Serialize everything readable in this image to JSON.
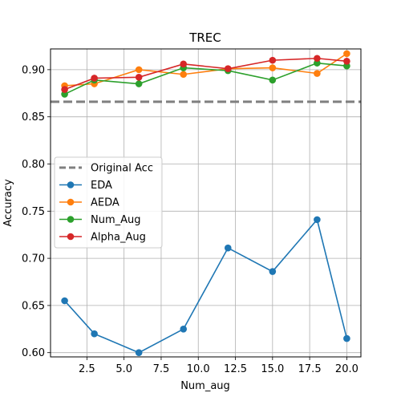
{
  "chart_data": {
    "type": "line",
    "title": "TREC",
    "xlabel": "Num_aug",
    "ylabel": "Accuracy",
    "xlim": [
      0.05,
      20.95
    ],
    "ylim": [
      0.5955,
      0.922
    ],
    "xticks": [
      2.5,
      5.0,
      7.5,
      10.0,
      12.5,
      15.0,
      17.5,
      20.0
    ],
    "xtick_labels": [
      "2.5",
      "5.0",
      "7.5",
      "10.0",
      "12.5",
      "15.0",
      "17.5",
      "20.0"
    ],
    "yticks": [
      0.6,
      0.65,
      0.7,
      0.75,
      0.8,
      0.85,
      0.9
    ],
    "ytick_labels": [
      "0.60",
      "0.65",
      "0.70",
      "0.75",
      "0.80",
      "0.85",
      "0.90"
    ],
    "grid": true,
    "legend_position": "center-left",
    "x": [
      1,
      3,
      6,
      9,
      12,
      15,
      18,
      20
    ],
    "baseline": {
      "name": "Original Acc",
      "value": 0.866,
      "color": "#7f7f7f"
    },
    "series": [
      {
        "name": "EDA",
        "color": "#1f77b4",
        "values": [
          0.655,
          0.62,
          0.6,
          0.625,
          0.711,
          0.686,
          0.741,
          0.615
        ]
      },
      {
        "name": "AEDA",
        "color": "#ff7f0e",
        "values": [
          0.883,
          0.885,
          0.9,
          0.895,
          0.901,
          0.902,
          0.896,
          0.917
        ]
      },
      {
        "name": "Num_Aug",
        "color": "#2ca02c",
        "values": [
          0.874,
          0.889,
          0.885,
          0.902,
          0.899,
          0.889,
          0.907,
          0.904
        ]
      },
      {
        "name": "Alpha_Aug",
        "color": "#d62728",
        "values": [
          0.879,
          0.891,
          0.892,
          0.906,
          0.901,
          0.91,
          0.912,
          0.909
        ]
      }
    ]
  }
}
